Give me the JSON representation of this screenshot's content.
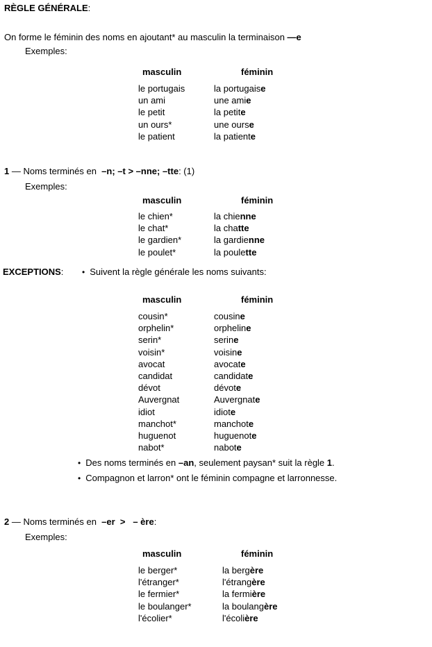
{
  "title": {
    "bold": "RÈGLE GÉNÉRALE",
    "suffix": ":"
  },
  "intro": {
    "text": "On forme le féminin des noms en ajoutant* au masculin la terminaison ",
    "bold_ending": "—e"
  },
  "labels": {
    "exemples": "Exemples:",
    "masculin": "masculin",
    "feminin": "féminin",
    "bullet": "•"
  },
  "general_rule": {
    "table": {
      "rows": [
        {
          "m": "le portugais",
          "f_base": "la portugais",
          "f_bold": "e"
        },
        {
          "m": "un ami",
          "f_base": "une ami",
          "f_bold": "e"
        },
        {
          "m": "le petit",
          "f_base": "la petit",
          "f_bold": "e"
        },
        {
          "m": "un ours*",
          "f_base": "une ours",
          "f_bold": "e"
        },
        {
          "m": "le patient",
          "f_base": "la patient",
          "f_bold": "e"
        }
      ]
    }
  },
  "section1": {
    "number": "1",
    "lead": " — Noms terminés en  ",
    "rule_bold": "–n; –t > –nne; –tte",
    "tail": ": (1)",
    "table": {
      "rows": [
        {
          "m": "le chien*",
          "f_base": "la chie",
          "f_bold": "nne"
        },
        {
          "m": "le chat*",
          "f_base": "la cha",
          "f_bold": "tte"
        },
        {
          "m": "le gardien*",
          "f_base": "la gardie",
          "f_bold": "nne"
        },
        {
          "m": "le poulet*",
          "f_base": "la poule",
          "f_bold": "tte"
        }
      ]
    }
  },
  "exceptions": {
    "heading": "EXCEPTIONS",
    "heading_suffix": ":",
    "intro_bullet_text": "Suivent la règle générale les noms suivants:",
    "table": {
      "rows": [
        {
          "m": "cousin*",
          "f_base": "cousin",
          "f_bold": "e"
        },
        {
          "m": "orphelin*",
          "f_base": "orphelin",
          "f_bold": "e"
        },
        {
          "m": "serin*",
          "f_base": "serin",
          "f_bold": "e"
        },
        {
          "m": "voisin*",
          "f_base": "voisin",
          "f_bold": "e"
        },
        {
          "m": "avocat",
          "f_base": "avocat",
          "f_bold": "e"
        },
        {
          "m": "candidat",
          "f_base": "candidat",
          "f_bold": "e"
        },
        {
          "m": "dévot",
          "f_base": "dévot",
          "f_bold": "e"
        },
        {
          "m": "Auvergnat",
          "f_base": "Auvergnat",
          "f_bold": "e"
        },
        {
          "m": "idiot",
          "f_base": "idiot",
          "f_bold": "e"
        },
        {
          "m": "manchot*",
          "f_base": "manchot",
          "f_bold": "e"
        },
        {
          "m": "huguenot",
          "f_base": "huguenot",
          "f_bold": "e"
        },
        {
          "m": "nabot*",
          "f_base": "nabot",
          "f_bold": "e"
        }
      ]
    },
    "note1": {
      "pre": "Des noms terminés en ",
      "bold1": "–an",
      "mid": ", seulement paysan* suit la règle ",
      "bold2": "1",
      "end": "."
    },
    "note2": "Compagnon et larron* ont le féminin compagne et larronnesse."
  },
  "section2": {
    "number": "2",
    "lead": " — Noms terminés en  ",
    "rule_bold": "–er  >   – ère",
    "tail": ":",
    "table": {
      "rows": [
        {
          "m": "le berger*",
          "f_base": "la berg",
          "f_bold": "ère"
        },
        {
          "m": "l'étranger*",
          "f_base": "l'étrang",
          "f_bold": "ère"
        },
        {
          "m": "le fermier*",
          "f_base": "la fermi",
          "f_bold": "ère"
        },
        {
          "m": "le boulanger*",
          "f_base": "la boulang",
          "f_bold": "ère"
        },
        {
          "m": "l'écolier*",
          "f_base": "l'écoli",
          "f_bold": "ère"
        }
      ]
    }
  }
}
